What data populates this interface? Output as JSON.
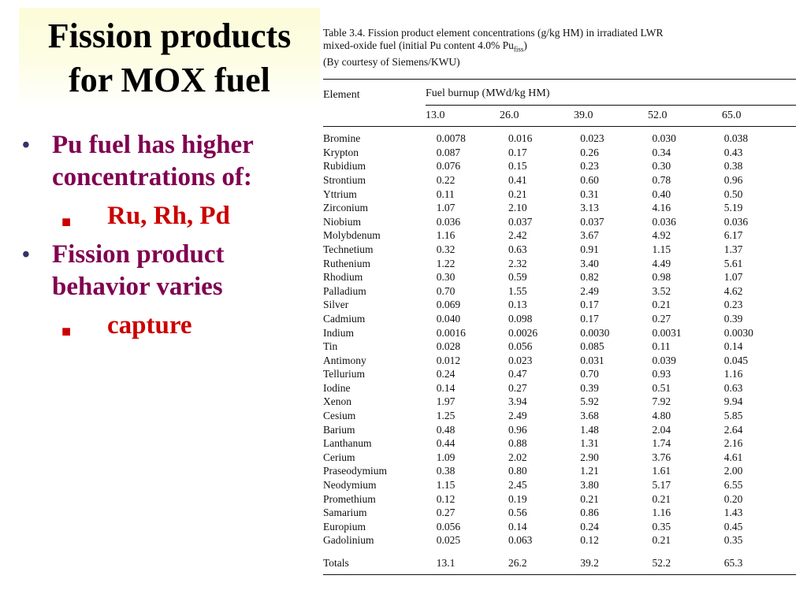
{
  "title": {
    "line1": "Fission products",
    "line2": "for MOX fuel"
  },
  "bullets": [
    {
      "text": "Pu fuel has higher concentrations of:",
      "sub": "Ru, Rh, Pd"
    },
    {
      "text": "Fission product behavior varies",
      "sub": "capture"
    }
  ],
  "table": {
    "caption_line1": "Table 3.4.  Fission product element concentrations (g/kg HM) in irradiated LWR",
    "caption_line2a": "mixed-oxide fuel (initial Pu content 4.0% Pu",
    "caption_line2b": "fiss",
    "caption_line2c": ")",
    "caption_line3": "(By courtesy of Siemens/KWU)",
    "col_element": "Element",
    "col_burnup": "Fuel burnup (MWd/kg HM)",
    "burnups": [
      "13.0",
      "26.0",
      "39.0",
      "52.0",
      "65.0"
    ],
    "rows": [
      {
        "name": "Bromine",
        "values": [
          "0.0078",
          "0.016",
          "0.023",
          "0.030",
          "0.038"
        ]
      },
      {
        "name": "Krypton",
        "values": [
          "0.087",
          "0.17",
          "0.26",
          "0.34",
          "0.43"
        ]
      },
      {
        "name": "Rubidium",
        "values": [
          "0.076",
          "0.15",
          "0.23",
          "0.30",
          "0.38"
        ]
      },
      {
        "name": "Strontium",
        "values": [
          "0.22",
          "0.41",
          "0.60",
          "0.78",
          "0.96"
        ]
      },
      {
        "name": "Yttrium",
        "values": [
          "0.11",
          "0.21",
          "0.31",
          "0.40",
          "0.50"
        ]
      },
      {
        "name": "Zirconium",
        "values": [
          "1.07",
          "2.10",
          "3.13",
          "4.16",
          "5.19"
        ]
      },
      {
        "name": "Niobium",
        "values": [
          "0.036",
          "0.037",
          "0.037",
          "0.036",
          "0.036"
        ]
      },
      {
        "name": "Molybdenum",
        "values": [
          "1.16",
          "2.42",
          "3.67",
          "4.92",
          "6.17"
        ]
      },
      {
        "name": "Technetium",
        "values": [
          "0.32",
          "0.63",
          "0.91",
          "1.15",
          "1.37"
        ]
      },
      {
        "name": "Ruthenium",
        "values": [
          "1.22",
          "2.32",
          "3.40",
          "4.49",
          "5.61"
        ]
      },
      {
        "name": "Rhodium",
        "values": [
          "0.30",
          "0.59",
          "0.82",
          "0.98",
          "1.07"
        ]
      },
      {
        "name": "Palladium",
        "values": [
          "0.70",
          "1.55",
          "2.49",
          "3.52",
          "4.62"
        ]
      },
      {
        "name": "Silver",
        "values": [
          "0.069",
          "0.13",
          "0.17",
          "0.21",
          "0.23"
        ]
      },
      {
        "name": "Cadmium",
        "values": [
          "0.040",
          "0.098",
          "0.17",
          "0.27",
          "0.39"
        ]
      },
      {
        "name": "Indium",
        "values": [
          "0.0016",
          "0.0026",
          "0.0030",
          "0.0031",
          "0.0030"
        ]
      },
      {
        "name": "Tin",
        "values": [
          "0.028",
          "0.056",
          "0.085",
          "0.11",
          "0.14"
        ]
      },
      {
        "name": "Antimony",
        "values": [
          "0.012",
          "0.023",
          "0.031",
          "0.039",
          "0.045"
        ]
      },
      {
        "name": "Tellurium",
        "values": [
          "0.24",
          "0.47",
          "0.70",
          "0.93",
          "1.16"
        ]
      },
      {
        "name": "Iodine",
        "values": [
          "0.14",
          "0.27",
          "0.39",
          "0.51",
          "0.63"
        ]
      },
      {
        "name": "Xenon",
        "values": [
          "1.97",
          "3.94",
          "5.92",
          "7.92",
          "9.94"
        ]
      },
      {
        "name": "Cesium",
        "values": [
          "1.25",
          "2.49",
          "3.68",
          "4.80",
          "5.85"
        ]
      },
      {
        "name": "Barium",
        "values": [
          "0.48",
          "0.96",
          "1.48",
          "2.04",
          "2.64"
        ]
      },
      {
        "name": "Lanthanum",
        "values": [
          "0.44",
          "0.88",
          "1.31",
          "1.74",
          "2.16"
        ]
      },
      {
        "name": "Cerium",
        "values": [
          "1.09",
          "2.02",
          "2.90",
          "3.76",
          "4.61"
        ]
      },
      {
        "name": "Praseodymium",
        "values": [
          "0.38",
          "0.80",
          "1.21",
          "1.61",
          "2.00"
        ]
      },
      {
        "name": "Neodymium",
        "values": [
          "1.15",
          "2.45",
          "3.80",
          "5.17",
          "6.55"
        ]
      },
      {
        "name": "Promethium",
        "values": [
          "0.12",
          "0.19",
          "0.21",
          "0.21",
          "0.20"
        ]
      },
      {
        "name": "Samarium",
        "values": [
          "0.27",
          "0.56",
          "0.86",
          "1.16",
          "1.43"
        ]
      },
      {
        "name": "Europium",
        "values": [
          "0.056",
          "0.14",
          "0.24",
          "0.35",
          "0.45"
        ]
      },
      {
        "name": "Gadolinium",
        "values": [
          "0.025",
          "0.063",
          "0.12",
          "0.21",
          "0.35"
        ]
      }
    ],
    "totals": {
      "name": "Totals",
      "values": [
        "13.1",
        "26.2",
        "39.2",
        "52.2",
        "65.3"
      ]
    }
  }
}
